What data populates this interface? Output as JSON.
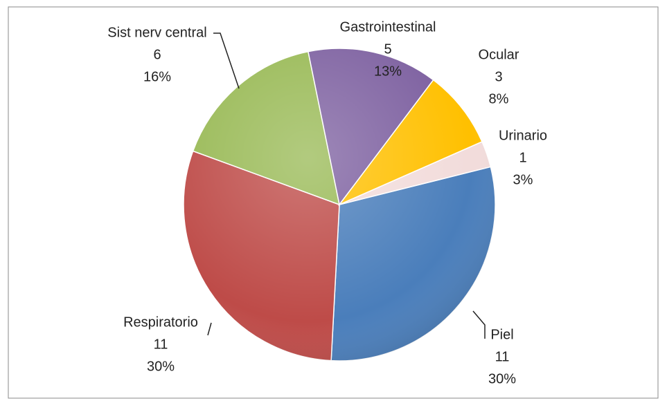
{
  "chart_data": {
    "type": "pie",
    "categories": [
      "Piel",
      "Respiratorio",
      "Sist nerv central",
      "Gastrointestinal",
      "Ocular",
      "Urinario"
    ],
    "values": [
      11,
      11,
      6,
      5,
      3,
      1
    ],
    "percent_labels": [
      "30%",
      "30%",
      "16%",
      "13%",
      "8%",
      "3%"
    ],
    "colors": [
      "#4a7ebb",
      "#be4b48",
      "#98b954",
      "#7d60a0",
      "#ffc000",
      "#f2dcdb"
    ]
  }
}
